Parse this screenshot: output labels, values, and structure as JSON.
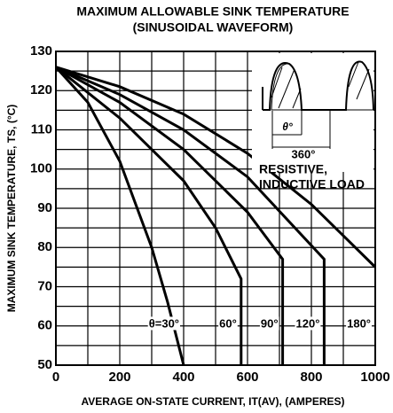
{
  "chart_data": {
    "type": "line",
    "title": "MAXIMUM ALLOWABLE SINK TEMPERATURE",
    "subtitle": "(SINUSOIDAL WAVEFORM)",
    "x_label": "AVERAGE ON-STATE CURRENT, IT(AV), (AMPERES)",
    "y_label": "MAXIMUM SINK TEMPERATURE, TS, (°C)",
    "xlim": [
      0,
      1000
    ],
    "ylim": [
      50,
      130
    ],
    "xticks": [
      0,
      200,
      400,
      600,
      800,
      1000
    ],
    "yticks": [
      50,
      60,
      70,
      80,
      90,
      100,
      110,
      120,
      130
    ],
    "x_minor_ticks": [
      100,
      300,
      500,
      700,
      900
    ],
    "y_minor_ticks": [
      55,
      65,
      75,
      85,
      95,
      105,
      115,
      125
    ],
    "grid": true,
    "color": "#000000",
    "annotations": [
      "θ°",
      "360°",
      "RESISTIVE,",
      "INDUCTIVE LOAD"
    ],
    "series": [
      {
        "name": "θ=30°",
        "x": [
          0,
          100,
          200,
          300,
          350,
          400
        ],
        "values": [
          126,
          117,
          102,
          80,
          66,
          50
        ]
      },
      {
        "name": "60°",
        "x": [
          0,
          200,
          400,
          500,
          580,
          580
        ],
        "values": [
          126,
          113,
          97,
          85,
          72,
          50
        ]
      },
      {
        "name": "90°",
        "x": [
          0,
          200,
          400,
          600,
          710,
          710
        ],
        "values": [
          126,
          117,
          105,
          89,
          77,
          50
        ]
      },
      {
        "name": "120°",
        "x": [
          0,
          200,
          400,
          600,
          840,
          840
        ],
        "values": [
          126,
          119,
          110,
          98,
          77,
          50
        ]
      },
      {
        "name": "180°",
        "x": [
          0,
          200,
          400,
          600,
          800,
          1000
        ],
        "values": [
          126,
          121,
          114,
          104,
          91,
          75
        ]
      }
    ]
  }
}
